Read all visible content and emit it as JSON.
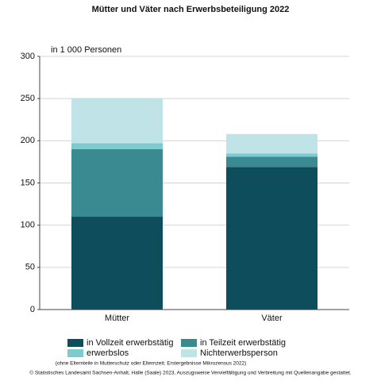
{
  "chart_data": {
    "type": "stacked_bar",
    "title": "Mütter und Väter nach Erwerbsbeteiligung 2022",
    "y_label": "in 1 000 Personen",
    "categories": [
      "Mütter",
      "Väter"
    ],
    "series": [
      {
        "name": "in Vollzeit erwerbstätig",
        "color": "#0d4d5c",
        "values": [
          110,
          169
        ]
      },
      {
        "name": "in Teilzeit erwerbstätig",
        "color": "#3a8a91",
        "values": [
          80,
          12
        ]
      },
      {
        "name": "erwerbslos",
        "color": "#7ecbcf",
        "values": [
          7,
          4
        ]
      },
      {
        "name": "Nichterwerbsperson",
        "color": "#bfe3e6",
        "values": [
          53,
          23
        ]
      }
    ],
    "ylim": [
      0,
      300
    ],
    "yticks": [
      0,
      50,
      100,
      150,
      200,
      250,
      300
    ],
    "grid": true,
    "footnote": "(ohne Elternteile in Mutterschutz oder Elternzeit; Erstergebnisse Mikrozensus 2022)",
    "source": "© Statistisches Landesamt Sachsen-Anhalt, Halle (Saale) 2023, Auszugsweise Vervielfältigung und Verbreitung mit Quellenangabe gestattet."
  }
}
